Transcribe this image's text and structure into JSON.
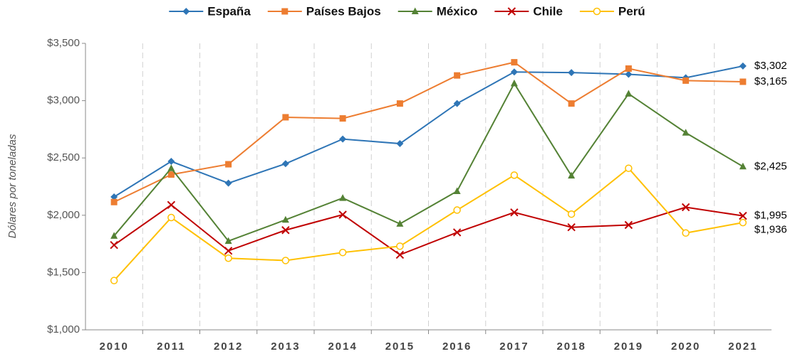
{
  "chart_data": {
    "type": "line",
    "y_label": "Dólares por toneladas",
    "categories": [
      "2010",
      "2011",
      "2012",
      "2013",
      "2014",
      "2015",
      "2016",
      "2017",
      "2018",
      "2019",
      "2020",
      "2021"
    ],
    "series": [
      {
        "name": "España",
        "color": "#2e75b6",
        "marker": "diamond",
        "values": [
          2160,
          2470,
          2280,
          2450,
          2665,
          2625,
          2975,
          3250,
          3245,
          3230,
          3200,
          3302
        ],
        "value_labels": [
          null,
          null,
          null,
          null,
          null,
          null,
          null,
          null,
          null,
          null,
          null,
          "$3,302"
        ]
      },
      {
        "name": "Países Bajos",
        "color": "#ed7d31",
        "marker": "square",
        "values": [
          2115,
          2355,
          2445,
          2855,
          2845,
          2975,
          3220,
          3335,
          2975,
          3280,
          3175,
          3165
        ],
        "value_labels": [
          null,
          null,
          null,
          null,
          null,
          null,
          null,
          null,
          null,
          null,
          null,
          "$3,165"
        ]
      },
      {
        "name": "México",
        "color": "#548235",
        "marker": "triangle",
        "values": [
          1820,
          2410,
          1775,
          1960,
          2150,
          1925,
          2210,
          3150,
          2345,
          3060,
          2720,
          2425
        ],
        "value_labels": [
          null,
          null,
          null,
          null,
          null,
          null,
          null,
          null,
          null,
          null,
          null,
          "$2,425"
        ]
      },
      {
        "name": "Chile",
        "color": "#c00000",
        "marker": "x",
        "values": [
          1740,
          2090,
          1690,
          1870,
          2005,
          1655,
          1850,
          2025,
          1895,
          1915,
          2070,
          1995
        ],
        "value_labels": [
          null,
          null,
          null,
          null,
          null,
          null,
          null,
          null,
          null,
          null,
          null,
          "$1,995"
        ]
      },
      {
        "name": "Perú",
        "color": "#ffc000",
        "marker": "circle-open",
        "values": [
          1430,
          1980,
          1625,
          1605,
          1675,
          1730,
          2045,
          2350,
          2010,
          2410,
          1845,
          1936
        ],
        "value_labels": [
          null,
          null,
          null,
          null,
          null,
          null,
          null,
          null,
          null,
          null,
          null,
          "$1,936"
        ]
      }
    ],
    "ylim": [
      1000,
      3500
    ],
    "yticks": [
      {
        "value": 1000,
        "label": "$1,000"
      },
      {
        "value": 1500,
        "label": "$1,500"
      },
      {
        "value": 2000,
        "label": "$2,000"
      },
      {
        "value": 2500,
        "label": "$2,500"
      },
      {
        "value": 3000,
        "label": "$3,000"
      },
      {
        "value": 3500,
        "label": "$3,500"
      }
    ],
    "grid": "x-dashed",
    "legend": "top"
  }
}
